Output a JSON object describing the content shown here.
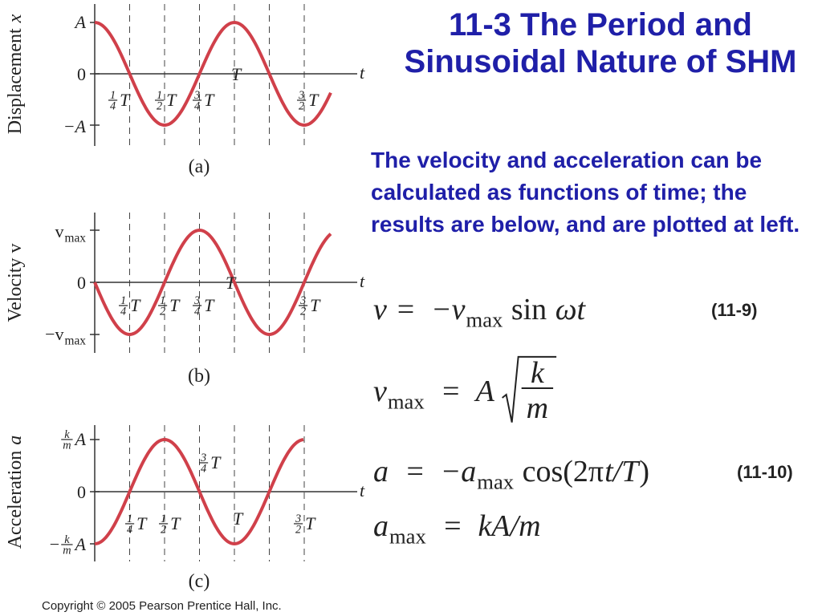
{
  "title": "11-3 The Period and Sinusoidal Nature of SHM",
  "body": "The velocity and acceleration can be calculated as functions of time; the results are below, and are plotted at left.",
  "plots": [
    {
      "y_title": [
        {
          "t": "Displacement "
        },
        {
          "t": "x",
          "italic": true
        }
      ],
      "y_ticks": [
        [
          {
            "t": "A",
            "italic": true
          }
        ],
        [
          {
            "t": "0"
          }
        ],
        [
          {
            "t": "−A",
            "italic": true
          }
        ]
      ],
      "x_label": "t",
      "x_ticks": [
        [
          {
            "num": "1",
            "den": "4"
          },
          {
            "t": "T",
            "italic": true
          }
        ],
        [
          {
            "num": "1",
            "den": "2"
          },
          {
            "t": "T",
            "italic": true
          }
        ],
        [
          {
            "num": "3",
            "den": "4"
          },
          {
            "t": "T",
            "italic": true
          }
        ],
        [
          {
            "t": "T",
            "italic": true
          }
        ],
        [
          {
            "num": "3",
            "den": "2"
          },
          {
            "t": "T",
            "italic": true
          }
        ]
      ],
      "caption": "(a)"
    },
    {
      "y_title": [
        {
          "t": "Velocity v"
        }
      ],
      "y_ticks": [
        [
          {
            "t": "v"
          },
          {
            "t": "max",
            "sub": true
          }
        ],
        [
          {
            "t": "0"
          }
        ],
        [
          {
            "t": "−v"
          },
          {
            "t": "max",
            "sub": true
          }
        ]
      ],
      "x_label": "t",
      "x_ticks": [
        [
          {
            "num": "1",
            "den": "4"
          },
          {
            "t": "T",
            "italic": true
          }
        ],
        [
          {
            "num": "1",
            "den": "2"
          },
          {
            "t": "T",
            "italic": true
          }
        ],
        [
          {
            "num": "3",
            "den": "4"
          },
          {
            "t": "T",
            "italic": true
          }
        ],
        [
          {
            "t": "T",
            "italic": true
          }
        ],
        [
          {
            "num": "3",
            "den": "2"
          },
          {
            "t": "T",
            "italic": true
          }
        ]
      ],
      "caption": "(b)"
    },
    {
      "y_title": [
        {
          "t": "Acceleration "
        },
        {
          "t": "a",
          "italic": true
        }
      ],
      "y_ticks": [
        [
          {
            "num": "k",
            "den": "m"
          },
          {
            "t": "A",
            "italic": true
          }
        ],
        [
          {
            "t": "0"
          }
        ],
        [
          {
            "pre": "−"
          },
          {
            "num": "k",
            "den": "m"
          },
          {
            "t": "A",
            "italic": true
          }
        ]
      ],
      "x_label": "t",
      "x_ticks": [
        [
          {
            "num": "1",
            "den": "4"
          },
          {
            "t": "T",
            "italic": true
          }
        ],
        [
          {
            "num": "1",
            "den": "2"
          },
          {
            "t": "T",
            "italic": true
          }
        ],
        [
          {
            "num": "3",
            "den": "4"
          },
          {
            "t": "T",
            "italic": true
          }
        ],
        [
          {
            "t": "T",
            "italic": true
          }
        ],
        [
          {
            "num": "3",
            "den": "2"
          },
          {
            "t": "T",
            "italic": true
          }
        ]
      ],
      "caption": "(c)"
    }
  ],
  "equations": [
    {
      "parts": [
        {
          "t": "v"
        },
        {
          "t": " =  −v"
        },
        {
          "t": "max",
          "sub": true
        },
        {
          "t": " sin ",
          "roman": true
        },
        {
          "t": "ωt"
        }
      ],
      "number": "(11-9)"
    },
    {
      "parts": [
        {
          "t": "v"
        },
        {
          "t": "max",
          "sub": true
        },
        {
          "t": "  =  A "
        },
        {
          "num": "k",
          "den": "m",
          "sqrt": true
        }
      ]
    },
    {
      "parts": [
        {
          "t": "a"
        },
        {
          "t": "  =  −a"
        },
        {
          "t": "max",
          "sub": true
        },
        {
          "t": " cos(2π",
          "roman": true
        },
        {
          "t": "t/T"
        },
        {
          "t": ")",
          "roman": true
        }
      ],
      "number": "(11-10)"
    },
    {
      "parts": [
        {
          "t": "a"
        },
        {
          "t": "max",
          "sub": true
        },
        {
          "t": "  =  kA/m"
        }
      ]
    }
  ],
  "copyright": "Copyright © 2005 Pearson Prentice Hall, Inc."
}
